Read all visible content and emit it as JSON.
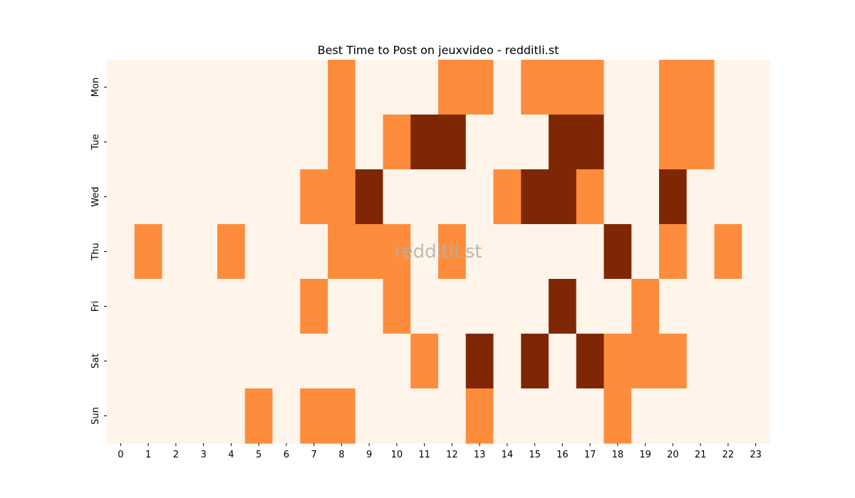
{
  "chart_data": {
    "type": "heatmap",
    "title": "Best Time to Post on jeuxvideo - redditli.st",
    "watermark": "redditli.st",
    "xlabel": "",
    "ylabel": "",
    "x_categories": [
      "0",
      "1",
      "2",
      "3",
      "4",
      "5",
      "6",
      "7",
      "8",
      "9",
      "10",
      "11",
      "12",
      "13",
      "14",
      "15",
      "16",
      "17",
      "18",
      "19",
      "20",
      "21",
      "22",
      "23"
    ],
    "y_categories": [
      "Mon",
      "Tue",
      "Wed",
      "Thu",
      "Fri",
      "Sat",
      "Sun"
    ],
    "levels": {
      "0": "#fef4e9",
      "1": "#fd8d3c",
      "2": "#7f2704"
    },
    "values": [
      [
        0,
        0,
        0,
        0,
        0,
        0,
        0,
        0,
        1,
        0,
        0,
        0,
        1,
        1,
        0,
        1,
        1,
        1,
        0,
        0,
        1,
        1,
        0,
        0
      ],
      [
        0,
        0,
        0,
        0,
        0,
        0,
        0,
        0,
        1,
        0,
        1,
        2,
        2,
        0,
        0,
        0,
        2,
        2,
        0,
        0,
        1,
        1,
        0,
        0
      ],
      [
        0,
        0,
        0,
        0,
        0,
        0,
        0,
        1,
        1,
        2,
        0,
        0,
        0,
        0,
        1,
        2,
        2,
        1,
        0,
        0,
        2,
        0,
        0,
        0
      ],
      [
        0,
        1,
        0,
        0,
        1,
        0,
        0,
        0,
        1,
        1,
        1,
        0,
        1,
        0,
        0,
        0,
        0,
        0,
        2,
        0,
        1,
        0,
        1,
        0
      ],
      [
        0,
        0,
        0,
        0,
        0,
        0,
        0,
        1,
        0,
        0,
        1,
        0,
        0,
        0,
        0,
        0,
        2,
        0,
        0,
        1,
        0,
        0,
        0,
        0
      ],
      [
        0,
        0,
        0,
        0,
        0,
        0,
        0,
        0,
        0,
        0,
        0,
        1,
        0,
        2,
        0,
        2,
        0,
        2,
        1,
        1,
        1,
        0,
        0,
        0
      ],
      [
        0,
        0,
        0,
        0,
        0,
        1,
        0,
        1,
        1,
        0,
        0,
        0,
        0,
        1,
        0,
        0,
        0,
        0,
        1,
        0,
        0,
        0,
        0,
        0
      ]
    ],
    "grid": false,
    "legend": "none"
  }
}
